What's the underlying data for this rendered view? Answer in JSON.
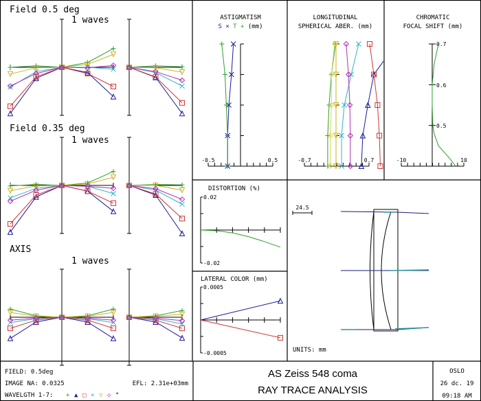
{
  "wavelengths": [
    {
      "id": 1,
      "color": "#2e9e2e",
      "marker": "plus"
    },
    {
      "id": 2,
      "color": "#1a1a9a",
      "marker": "triangle"
    },
    {
      "id": 3,
      "color": "#d03434",
      "marker": "square"
    },
    {
      "id": 4,
      "color": "#2fb4c4",
      "marker": "x"
    },
    {
      "id": 5,
      "color": "#d0b020",
      "marker": "triangle-down"
    },
    {
      "id": 6,
      "color": "#b030b0",
      "marker": "diamond"
    },
    {
      "id": 7,
      "color": "#d8d840",
      "marker": "circle"
    }
  ],
  "chart_data": [
    {
      "type": "line",
      "title": "Field 0.5 deg",
      "scale_label": "1 waves",
      "tangential": {
        "pupil": [
          -1,
          -0.5,
          0,
          0.5,
          1
        ],
        "series": [
          {
            "wl": 1,
            "values": [
              0,
              0.03,
              0,
              0.1,
              0.39
            ]
          },
          {
            "wl": 2,
            "values": [
              -0.96,
              -0.23,
              0,
              -0.11,
              -0.61
            ]
          },
          {
            "wl": 3,
            "values": [
              -0.81,
              -0.2,
              0,
              -0.13,
              -0.4
            ]
          },
          {
            "wl": 4,
            "values": [
              -0.41,
              -0.09,
              0,
              0,
              -0.04
            ]
          },
          {
            "wl": 5,
            "values": [
              -0.14,
              -0.01,
              0,
              0.06,
              0.27
            ]
          },
          {
            "wl": 6,
            "values": [
              -0.39,
              -0.13,
              0,
              -0.01,
              0.04
            ]
          }
        ]
      },
      "sagittal": {
        "pupil": [
          0,
          0.5,
          1
        ],
        "series": [
          {
            "wl": 1,
            "values": [
              0,
              0.03,
              0.01
            ]
          },
          {
            "wl": 2,
            "values": [
              0,
              -0.21,
              -0.96
            ]
          },
          {
            "wl": 3,
            "values": [
              0,
              -0.2,
              -0.74
            ]
          },
          {
            "wl": 4,
            "values": [
              0,
              -0.11,
              -0.39
            ]
          },
          {
            "wl": 5,
            "values": [
              0,
              -0.01,
              -0.1
            ]
          },
          {
            "wl": 6,
            "values": [
              0,
              -0.09,
              -0.27
            ]
          }
        ]
      }
    },
    {
      "type": "line",
      "title": "Field 0.35 deg",
      "scale_label": "1 waves",
      "tangential": {
        "pupil": [
          -1,
          -0.5,
          0,
          0.5,
          1
        ],
        "series": [
          {
            "wl": 1,
            "values": [
              -0.01,
              0.02,
              0,
              0.05,
              0.29
            ]
          },
          {
            "wl": 2,
            "values": [
              -0.97,
              -0.24,
              0,
              -0.12,
              -0.54
            ]
          },
          {
            "wl": 3,
            "values": [
              -0.8,
              -0.2,
              0,
              -0.12,
              -0.37
            ]
          },
          {
            "wl": 4,
            "values": [
              -0.26,
              -0.06,
              0,
              -0.02,
              -0.17
            ]
          },
          {
            "wl": 5,
            "values": [
              -0.11,
              -0.01,
              0,
              0.03,
              0.17
            ]
          },
          {
            "wl": 6,
            "values": [
              -0.33,
              -0.1,
              0,
              -0.02,
              -0.06
            ]
          }
        ]
      },
      "sagittal": {
        "pupil": [
          0,
          0.5,
          1
        ],
        "series": [
          {
            "wl": 1,
            "values": [
              0,
              0.02,
              0.01
            ]
          },
          {
            "wl": 2,
            "values": [
              0,
              -0.2,
              -1
            ]
          },
          {
            "wl": 3,
            "values": [
              0,
              -0.18,
              -0.69
            ]
          },
          {
            "wl": 4,
            "values": [
              0,
              -0.1,
              -0.39
            ]
          },
          {
            "wl": 5,
            "values": [
              0,
              0,
              -0.1
            ]
          },
          {
            "wl": 6,
            "values": [
              0,
              -0.07,
              -0.29
            ]
          }
        ]
      }
    },
    {
      "type": "line",
      "title": "AXIS",
      "scale_label": "1 waves",
      "tangential": {
        "pupil": [
          -1,
          -0.5,
          0,
          0.5,
          1
        ],
        "series": [
          {
            "wl": 1,
            "values": [
              0.17,
              0.03,
              0,
              0.03,
              0.17
            ]
          },
          {
            "wl": 2,
            "values": [
              -0.44,
              -0.1,
              0,
              -0.1,
              -0.44
            ]
          },
          {
            "wl": 3,
            "values": [
              -0.23,
              -0.06,
              0,
              -0.06,
              -0.23
            ]
          },
          {
            "wl": 4,
            "values": [
              -0.11,
              -0.03,
              0,
              -0.03,
              -0.11
            ]
          },
          {
            "wl": 5,
            "values": [
              0.1,
              0.02,
              0,
              0.02,
              0.1
            ]
          },
          {
            "wl": 6,
            "values": [
              -0.06,
              -0.02,
              0,
              -0.02,
              -0.06
            ]
          }
        ]
      },
      "sagittal": {
        "pupil": [
          0,
          0.5,
          1
        ],
        "series": [
          {
            "wl": 1,
            "values": [
              0,
              0.03,
              0.14
            ]
          },
          {
            "wl": 2,
            "values": [
              0,
              -0.1,
              -0.43
            ]
          },
          {
            "wl": 3,
            "values": [
              0,
              -0.06,
              -0.23
            ]
          },
          {
            "wl": 4,
            "values": [
              0,
              -0.03,
              -0.14
            ]
          },
          {
            "wl": 5,
            "values": [
              0,
              0.02,
              0.06
            ]
          },
          {
            "wl": 6,
            "values": [
              0,
              -0.02,
              -0.07
            ]
          }
        ]
      }
    },
    {
      "type": "line",
      "title": "ASTIGMATISM",
      "legend": {
        "s": "S",
        "s_marker": "×",
        "t": "T",
        "t_marker": "+",
        "unit": "(mm)"
      },
      "xlim": [
        -0.5,
        0.5
      ],
      "xtick_labels": [
        "-0.5",
        "0.5"
      ],
      "field_fraction": [
        1,
        0.75,
        0.5,
        0.25,
        0
      ],
      "series": [
        {
          "name": "S",
          "color": "#1a1a9a",
          "marker": "x",
          "values": [
            -0.11,
            -0.14,
            -0.18,
            -0.2,
            -0.2
          ]
        },
        {
          "name": "T",
          "color": "#2e9e2e",
          "marker": "plus",
          "values": [
            -0.29,
            -0.24,
            -0.22,
            -0.2,
            -0.2
          ]
        }
      ]
    },
    {
      "type": "line",
      "title": "LONGITUDINAL",
      "subtitle": "SPHERICAL ABER. (mm)",
      "xlim": [
        -0.7,
        0.7
      ],
      "xtick_labels": [
        "-0.7",
        "0.7"
      ],
      "pupil": [
        1,
        0.75,
        0.5,
        0.25,
        0
      ],
      "series": [
        {
          "wl": 1,
          "values": [
            -0.01,
            -0.1,
            -0.15,
            -0.18,
            -0.18
          ]
        },
        {
          "wl": 2,
          "values": [
            1.3,
            0.82,
            0.69,
            0.58,
            0.55
          ]
        },
        {
          "wl": 3,
          "values": [
            0.73,
            0.82,
            0.9,
            0.94,
            0.96
          ]
        },
        {
          "wl": 4,
          "values": [
            0.49,
            0.33,
            0.18,
            0.12,
            0.12
          ]
        },
        {
          "wl": 5,
          "values": [
            0,
            0,
            0,
            0,
            0
          ]
        },
        {
          "wl": 6,
          "values": [
            0.22,
            0.27,
            0.3,
            0.31,
            0.31
          ]
        },
        {
          "wl": 7,
          "values": [
            -0.03,
            -0.1,
            -0.1,
            -0.12,
            -0.13
          ]
        }
      ]
    },
    {
      "type": "line",
      "title": "CHROMATIC",
      "subtitle": "FOCAL SHIFT (mm)",
      "xlim": [
        -10,
        10
      ],
      "ylim": [
        0.4,
        0.7
      ],
      "xtick_labels": [
        "-10",
        "10"
      ],
      "ytick_labels": [
        "0.7",
        "0.6",
        "0.5"
      ],
      "series": [
        {
          "color": "#2e9e2e",
          "wavelength": [
            0.4,
            0.42,
            0.45,
            0.48,
            0.5,
            0.55,
            0.6,
            0.65,
            0.7
          ],
          "shift": [
            7.5,
            5.5,
            2,
            0.6,
            0.2,
            0,
            0,
            0.6,
            2
          ]
        }
      ]
    },
    {
      "type": "line",
      "title": "DISTORTION (%)",
      "ylim": [
        -0.02,
        0.02
      ],
      "ytick_labels": [
        "0.02",
        "-0.02"
      ],
      "series": [
        {
          "color": "#2e9e2e",
          "field_fraction": [
            0,
            0.2,
            0.4,
            0.6,
            0.8,
            1
          ],
          "values": [
            0,
            -0.0004,
            -0.0017,
            -0.004,
            -0.007,
            -0.0104
          ]
        }
      ]
    },
    {
      "type": "line",
      "title": "LATERAL COLOR (mm)",
      "ylim": [
        -0.0005,
        0.0005
      ],
      "ytick_labels": [
        "0.0005",
        "-0.0005"
      ],
      "series": [
        {
          "wl": 2,
          "color": "#1a1a9a",
          "marker": "triangle",
          "field_fraction": [
            0,
            1
          ],
          "values": [
            0,
            0.00029
          ]
        },
        {
          "wl": 3,
          "color": "#d03434",
          "marker": "square",
          "field_fraction": [
            0,
            1
          ],
          "values": [
            0,
            -0.00027
          ]
        }
      ]
    }
  ],
  "lens": {
    "scale_bar": "24.5",
    "units": "UNITS: mm",
    "ray_color": "#1a1a7a"
  },
  "footer": {
    "field": "FIELD: 0.5deg",
    "image_na": "IMAGE NA: 0.0325",
    "efl": "EFL: 2.31e+03mm",
    "wavelength_label": "WAVELGTH 1-7:",
    "wavelength_markers": [
      "+",
      "▲",
      "□",
      "×",
      "▽",
      "◇",
      "°"
    ],
    "title": "AS Zeiss 548 coma",
    "subtitle": "RAY TRACE ANALYSIS",
    "program": "OSLO",
    "date": "26 dc. 19",
    "time": "09:18 AM"
  }
}
